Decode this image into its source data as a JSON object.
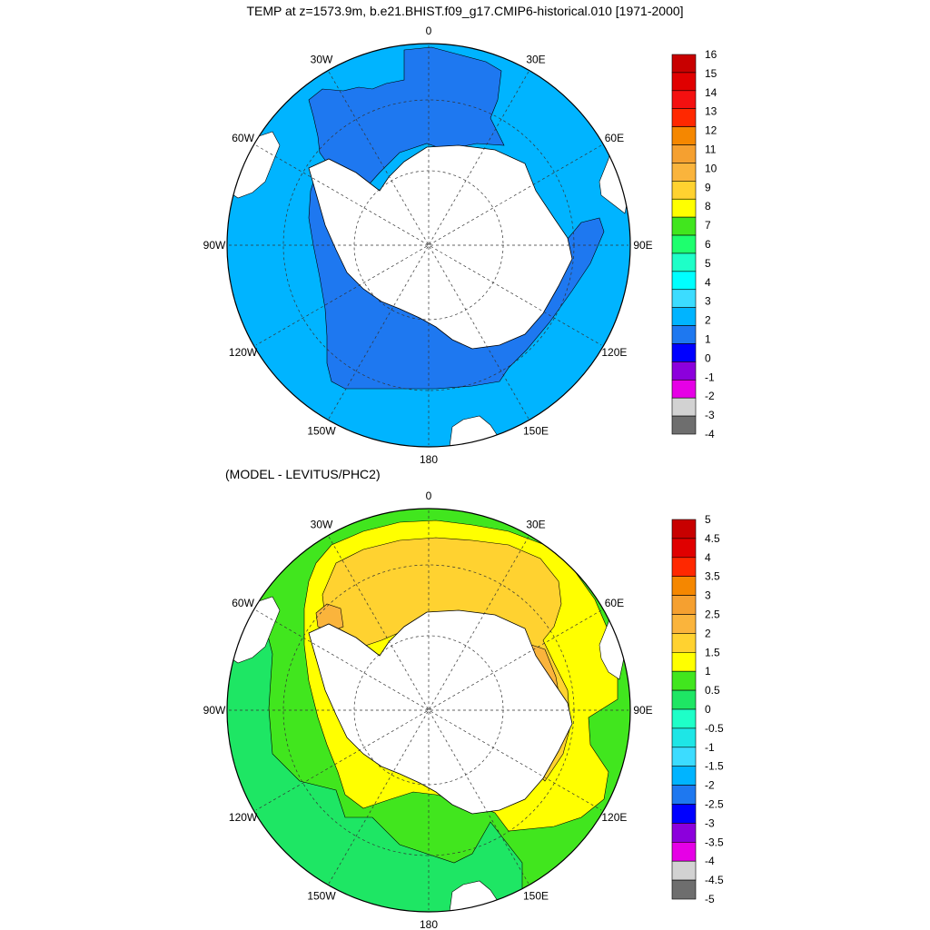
{
  "top_panel": {
    "title": "TEMP at z=1573.9m, b.e21.BHIST.f09_g17.CMIP6-historical.010 [1971-2000]",
    "longitude_labels": [
      "0",
      "30E",
      "60E",
      "90E",
      "120E",
      "150E",
      "180",
      "150W",
      "120W",
      "90W",
      "60W",
      "30W"
    ],
    "colorbar": {
      "labels": [
        "16",
        "15",
        "14",
        "13",
        "12",
        "11",
        "10",
        "9",
        "8",
        "7",
        "6",
        "5",
        "4",
        "3",
        "2",
        "1",
        "0",
        "-1",
        "-2",
        "-3",
        "-4"
      ],
      "colors": [
        "#C80000",
        "#E00000",
        "#F41010",
        "#FF2800",
        "#F58700",
        "#F5A030",
        "#FAB43C",
        "#FFD230",
        "#FFFF00",
        "#41E61E",
        "#1EFF6E",
        "#1EFFC8",
        "#00FFFF",
        "#3CDCFF",
        "#00B4FF",
        "#1E78F0",
        "#0000FF",
        "#8C00DC",
        "#E600E6",
        "#D2D2D2",
        "#6E6E6E"
      ]
    }
  },
  "bottom_panel": {
    "title": "(MODEL - LEVITUS/PHC2)",
    "longitude_labels": [
      "0",
      "30E",
      "60E",
      "90E",
      "120E",
      "150E",
      "180",
      "150W",
      "120W",
      "90W",
      "60W",
      "30W"
    ],
    "colorbar": {
      "labels": [
        "5",
        "4.5",
        "4",
        "3.5",
        "3",
        "2.5",
        "2",
        "1.5",
        "1",
        "0.5",
        "0",
        "-0.5",
        "-1",
        "-1.5",
        "-2",
        "-2.5",
        "-3",
        "-3.5",
        "-4",
        "-4.5",
        "-5"
      ],
      "colors": [
        "#C80000",
        "#E00000",
        "#FF2800",
        "#F58700",
        "#F5A030",
        "#FAB43C",
        "#FFD230",
        "#FFFF00",
        "#41E61E",
        "#1EE664",
        "#1EFFC8",
        "#1EE6E6",
        "#3CDCFF",
        "#00B4FF",
        "#1E78F0",
        "#0000FF",
        "#8C00DC",
        "#E600E6",
        "#D2D2D2",
        "#6E6E6E"
      ]
    }
  }
}
